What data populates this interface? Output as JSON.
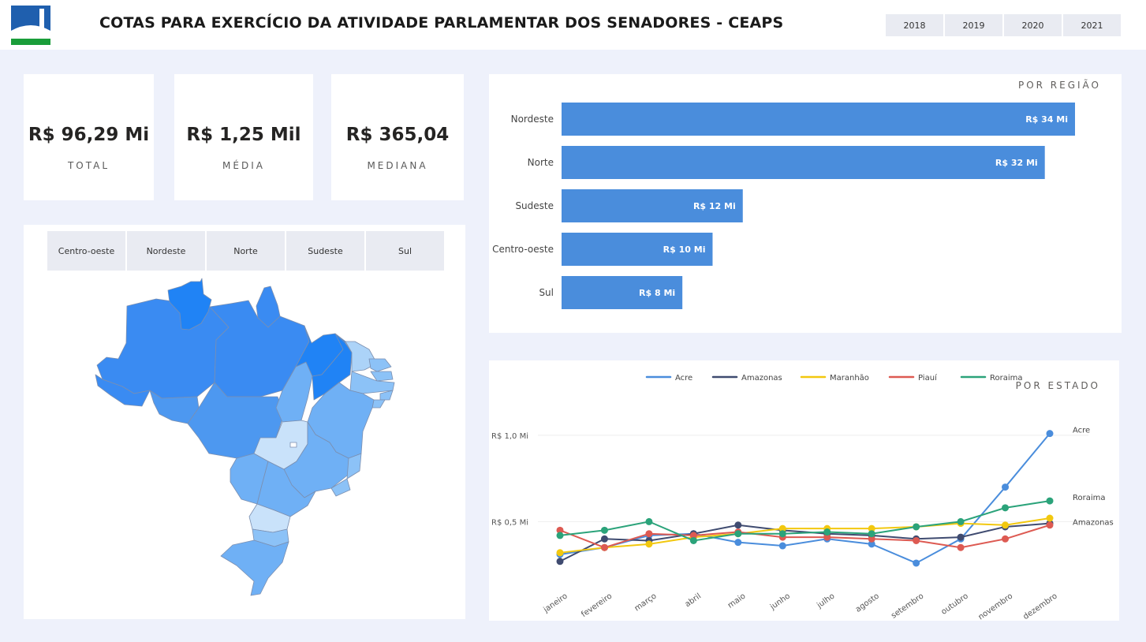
{
  "header": {
    "title": "COTAS PARA EXERCÍCIO DA ATIVIDADE PARLAMENTAR DOS SENADORES - CEAPS",
    "years": [
      "2018",
      "2019",
      "2020",
      "2021"
    ]
  },
  "kpis": [
    {
      "value": "R$ 96,29 Mi",
      "label": "TOTAL"
    },
    {
      "value": "R$ 1,25 Mil",
      "label": "MÉDIA"
    },
    {
      "value": "R$ 365,04",
      "label": "MEDIANA"
    }
  ],
  "map": {
    "region_filters": [
      "Centro-oeste",
      "Nordeste",
      "Norte",
      "Sudeste",
      "Sul"
    ]
  },
  "chart_data": [
    {
      "type": "bar",
      "orientation": "horizontal",
      "title": "POR REGIÃO",
      "categories": [
        "Nordeste",
        "Norte",
        "Sudeste",
        "Centro-oeste",
        "Sul"
      ],
      "values": [
        34,
        32,
        12,
        10,
        8
      ],
      "data_labels": [
        "R$ 34 Mi",
        "R$ 32 Mi",
        "R$ 12 Mi",
        "R$ 10 Mi",
        "R$ 8 Mi"
      ],
      "color": "#4a8ddc"
    },
    {
      "type": "line",
      "title": "POR ESTADO",
      "x": [
        "janeiro",
        "fevereiro",
        "março",
        "abril",
        "maio",
        "junho",
        "julho",
        "agosto",
        "setembro",
        "outubro",
        "novembro",
        "dezembro"
      ],
      "y_ticks": [
        {
          "value": 1.0,
          "label": "R$ 1,0 Mi"
        },
        {
          "value": 0.5,
          "label": "R$ 0,5 Mi"
        }
      ],
      "ylim": [
        0.1,
        1.15
      ],
      "legend_position": "top",
      "series": [
        {
          "name": "Acre",
          "color": "#4a8ddc",
          "values": [
            0.31,
            0.35,
            0.42,
            0.43,
            0.38,
            0.36,
            0.4,
            0.37,
            0.26,
            0.4,
            0.7,
            1.01
          ],
          "end_label": "Acre"
        },
        {
          "name": "Amazonas",
          "color": "#3f4b70",
          "values": [
            0.27,
            0.4,
            0.39,
            0.43,
            0.48,
            0.45,
            0.43,
            0.42,
            0.4,
            0.41,
            0.47,
            0.49
          ],
          "end_label": "Amazonas"
        },
        {
          "name": "Maranhão",
          "color": "#f2c80f",
          "values": [
            0.32,
            0.35,
            0.37,
            0.41,
            0.43,
            0.46,
            0.46,
            0.46,
            0.47,
            0.49,
            0.48,
            0.52
          ],
          "end_label": ""
        },
        {
          "name": "Piauí",
          "color": "#dd5a52",
          "values": [
            0.45,
            0.35,
            0.43,
            0.42,
            0.44,
            0.41,
            0.41,
            0.4,
            0.39,
            0.35,
            0.4,
            0.48
          ],
          "end_label": ""
        },
        {
          "name": "Roraima",
          "color": "#2ba37a",
          "values": [
            0.42,
            0.45,
            0.5,
            0.39,
            0.43,
            0.43,
            0.44,
            0.43,
            0.47,
            0.5,
            0.58,
            0.62
          ],
          "end_label": "Roraima"
        }
      ]
    }
  ]
}
